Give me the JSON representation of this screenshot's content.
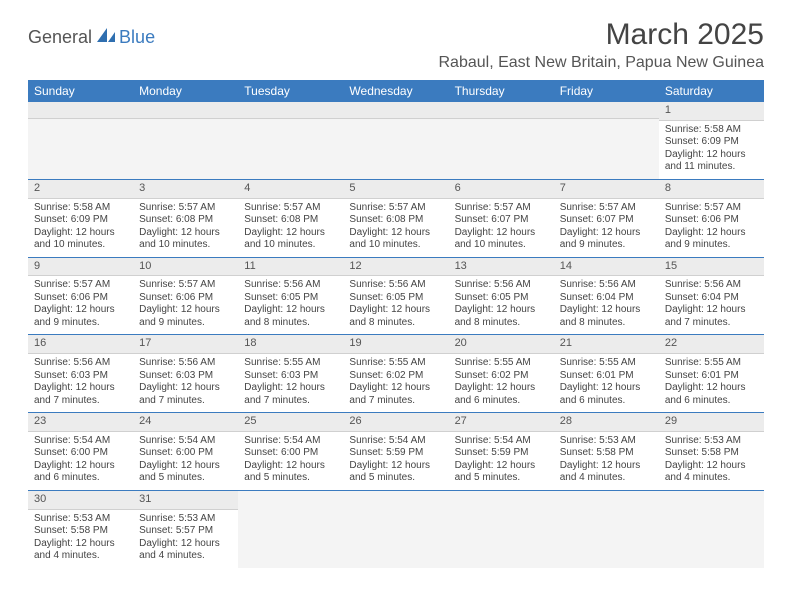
{
  "brand": {
    "part1": "General",
    "part2": "Blue",
    "sail_color": "#2f6fb0"
  },
  "title": "March 2025",
  "location": "Rabaul, East New Britain, Papua New Guinea",
  "colors": {
    "header_bg": "#3b7bbf",
    "header_text": "#ffffff",
    "rule": "#3b7bbf",
    "daynum_bg": "#ececec",
    "body_text": "#444444"
  },
  "weekdays": [
    "Sunday",
    "Monday",
    "Tuesday",
    "Wednesday",
    "Thursday",
    "Friday",
    "Saturday"
  ],
  "weeks": [
    [
      null,
      null,
      null,
      null,
      null,
      null,
      {
        "n": "1",
        "sr": "Sunrise: 5:58 AM",
        "ss": "Sunset: 6:09 PM",
        "dl1": "Daylight: 12 hours",
        "dl2": "and 11 minutes."
      }
    ],
    [
      {
        "n": "2",
        "sr": "Sunrise: 5:58 AM",
        "ss": "Sunset: 6:09 PM",
        "dl1": "Daylight: 12 hours",
        "dl2": "and 10 minutes."
      },
      {
        "n": "3",
        "sr": "Sunrise: 5:57 AM",
        "ss": "Sunset: 6:08 PM",
        "dl1": "Daylight: 12 hours",
        "dl2": "and 10 minutes."
      },
      {
        "n": "4",
        "sr": "Sunrise: 5:57 AM",
        "ss": "Sunset: 6:08 PM",
        "dl1": "Daylight: 12 hours",
        "dl2": "and 10 minutes."
      },
      {
        "n": "5",
        "sr": "Sunrise: 5:57 AM",
        "ss": "Sunset: 6:08 PM",
        "dl1": "Daylight: 12 hours",
        "dl2": "and 10 minutes."
      },
      {
        "n": "6",
        "sr": "Sunrise: 5:57 AM",
        "ss": "Sunset: 6:07 PM",
        "dl1": "Daylight: 12 hours",
        "dl2": "and 10 minutes."
      },
      {
        "n": "7",
        "sr": "Sunrise: 5:57 AM",
        "ss": "Sunset: 6:07 PM",
        "dl1": "Daylight: 12 hours",
        "dl2": "and 9 minutes."
      },
      {
        "n": "8",
        "sr": "Sunrise: 5:57 AM",
        "ss": "Sunset: 6:06 PM",
        "dl1": "Daylight: 12 hours",
        "dl2": "and 9 minutes."
      }
    ],
    [
      {
        "n": "9",
        "sr": "Sunrise: 5:57 AM",
        "ss": "Sunset: 6:06 PM",
        "dl1": "Daylight: 12 hours",
        "dl2": "and 9 minutes."
      },
      {
        "n": "10",
        "sr": "Sunrise: 5:57 AM",
        "ss": "Sunset: 6:06 PM",
        "dl1": "Daylight: 12 hours",
        "dl2": "and 9 minutes."
      },
      {
        "n": "11",
        "sr": "Sunrise: 5:56 AM",
        "ss": "Sunset: 6:05 PM",
        "dl1": "Daylight: 12 hours",
        "dl2": "and 8 minutes."
      },
      {
        "n": "12",
        "sr": "Sunrise: 5:56 AM",
        "ss": "Sunset: 6:05 PM",
        "dl1": "Daylight: 12 hours",
        "dl2": "and 8 minutes."
      },
      {
        "n": "13",
        "sr": "Sunrise: 5:56 AM",
        "ss": "Sunset: 6:05 PM",
        "dl1": "Daylight: 12 hours",
        "dl2": "and 8 minutes."
      },
      {
        "n": "14",
        "sr": "Sunrise: 5:56 AM",
        "ss": "Sunset: 6:04 PM",
        "dl1": "Daylight: 12 hours",
        "dl2": "and 8 minutes."
      },
      {
        "n": "15",
        "sr": "Sunrise: 5:56 AM",
        "ss": "Sunset: 6:04 PM",
        "dl1": "Daylight: 12 hours",
        "dl2": "and 7 minutes."
      }
    ],
    [
      {
        "n": "16",
        "sr": "Sunrise: 5:56 AM",
        "ss": "Sunset: 6:03 PM",
        "dl1": "Daylight: 12 hours",
        "dl2": "and 7 minutes."
      },
      {
        "n": "17",
        "sr": "Sunrise: 5:56 AM",
        "ss": "Sunset: 6:03 PM",
        "dl1": "Daylight: 12 hours",
        "dl2": "and 7 minutes."
      },
      {
        "n": "18",
        "sr": "Sunrise: 5:55 AM",
        "ss": "Sunset: 6:03 PM",
        "dl1": "Daylight: 12 hours",
        "dl2": "and 7 minutes."
      },
      {
        "n": "19",
        "sr": "Sunrise: 5:55 AM",
        "ss": "Sunset: 6:02 PM",
        "dl1": "Daylight: 12 hours",
        "dl2": "and 7 minutes."
      },
      {
        "n": "20",
        "sr": "Sunrise: 5:55 AM",
        "ss": "Sunset: 6:02 PM",
        "dl1": "Daylight: 12 hours",
        "dl2": "and 6 minutes."
      },
      {
        "n": "21",
        "sr": "Sunrise: 5:55 AM",
        "ss": "Sunset: 6:01 PM",
        "dl1": "Daylight: 12 hours",
        "dl2": "and 6 minutes."
      },
      {
        "n": "22",
        "sr": "Sunrise: 5:55 AM",
        "ss": "Sunset: 6:01 PM",
        "dl1": "Daylight: 12 hours",
        "dl2": "and 6 minutes."
      }
    ],
    [
      {
        "n": "23",
        "sr": "Sunrise: 5:54 AM",
        "ss": "Sunset: 6:00 PM",
        "dl1": "Daylight: 12 hours",
        "dl2": "and 6 minutes."
      },
      {
        "n": "24",
        "sr": "Sunrise: 5:54 AM",
        "ss": "Sunset: 6:00 PM",
        "dl1": "Daylight: 12 hours",
        "dl2": "and 5 minutes."
      },
      {
        "n": "25",
        "sr": "Sunrise: 5:54 AM",
        "ss": "Sunset: 6:00 PM",
        "dl1": "Daylight: 12 hours",
        "dl2": "and 5 minutes."
      },
      {
        "n": "26",
        "sr": "Sunrise: 5:54 AM",
        "ss": "Sunset: 5:59 PM",
        "dl1": "Daylight: 12 hours",
        "dl2": "and 5 minutes."
      },
      {
        "n": "27",
        "sr": "Sunrise: 5:54 AM",
        "ss": "Sunset: 5:59 PM",
        "dl1": "Daylight: 12 hours",
        "dl2": "and 5 minutes."
      },
      {
        "n": "28",
        "sr": "Sunrise: 5:53 AM",
        "ss": "Sunset: 5:58 PM",
        "dl1": "Daylight: 12 hours",
        "dl2": "and 4 minutes."
      },
      {
        "n": "29",
        "sr": "Sunrise: 5:53 AM",
        "ss": "Sunset: 5:58 PM",
        "dl1": "Daylight: 12 hours",
        "dl2": "and 4 minutes."
      }
    ],
    [
      {
        "n": "30",
        "sr": "Sunrise: 5:53 AM",
        "ss": "Sunset: 5:58 PM",
        "dl1": "Daylight: 12 hours",
        "dl2": "and 4 minutes."
      },
      {
        "n": "31",
        "sr": "Sunrise: 5:53 AM",
        "ss": "Sunset: 5:57 PM",
        "dl1": "Daylight: 12 hours",
        "dl2": "and 4 minutes."
      },
      null,
      null,
      null,
      null,
      null
    ]
  ]
}
